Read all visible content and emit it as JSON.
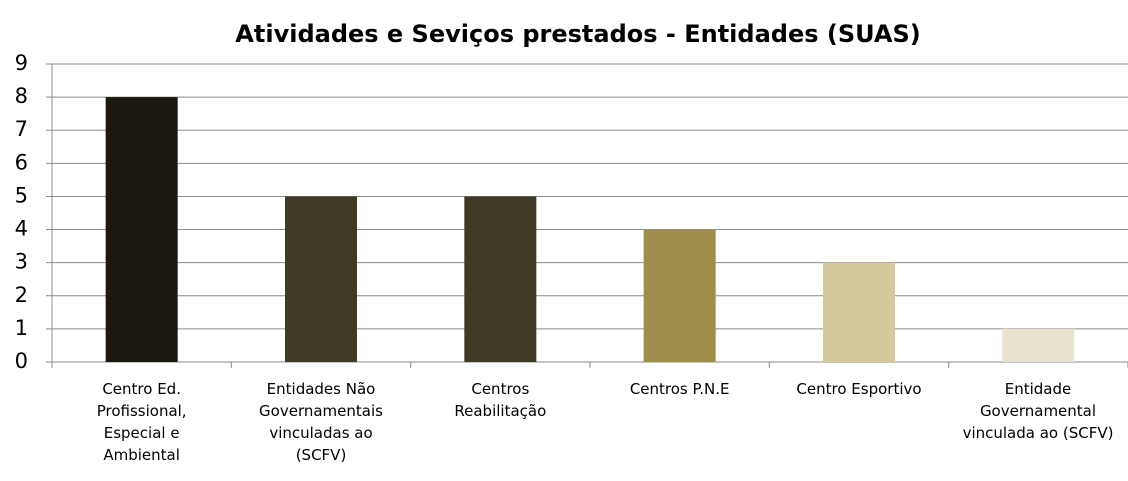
{
  "chart_data": {
    "type": "bar",
    "title": "Atividades e Seviços prestados - Entidades (SUAS)",
    "categories": [
      "Centro Ed.\nProfissional,\nEspecial e\nAmbiental",
      "Entidades Não\nGovernamentais\nvinculadas ao\n(SCFV)",
      "Centros\nReabilitação",
      "Centros P.N.E",
      "Centro Esportivo",
      "Entidade\nGovernamental\nvinculada ao (SCFV)"
    ],
    "values": [
      8,
      5,
      5,
      4,
      3,
      1
    ],
    "colors": [
      "#1c1810",
      "#3f3a24",
      "#3f3a24",
      "#9e8d4b",
      "#d3c99d",
      "#e7e3cf"
    ],
    "ylim": [
      0,
      9
    ],
    "yticks": [
      0,
      1,
      2,
      3,
      4,
      5,
      6,
      7,
      8,
      9
    ],
    "grid": true
  }
}
